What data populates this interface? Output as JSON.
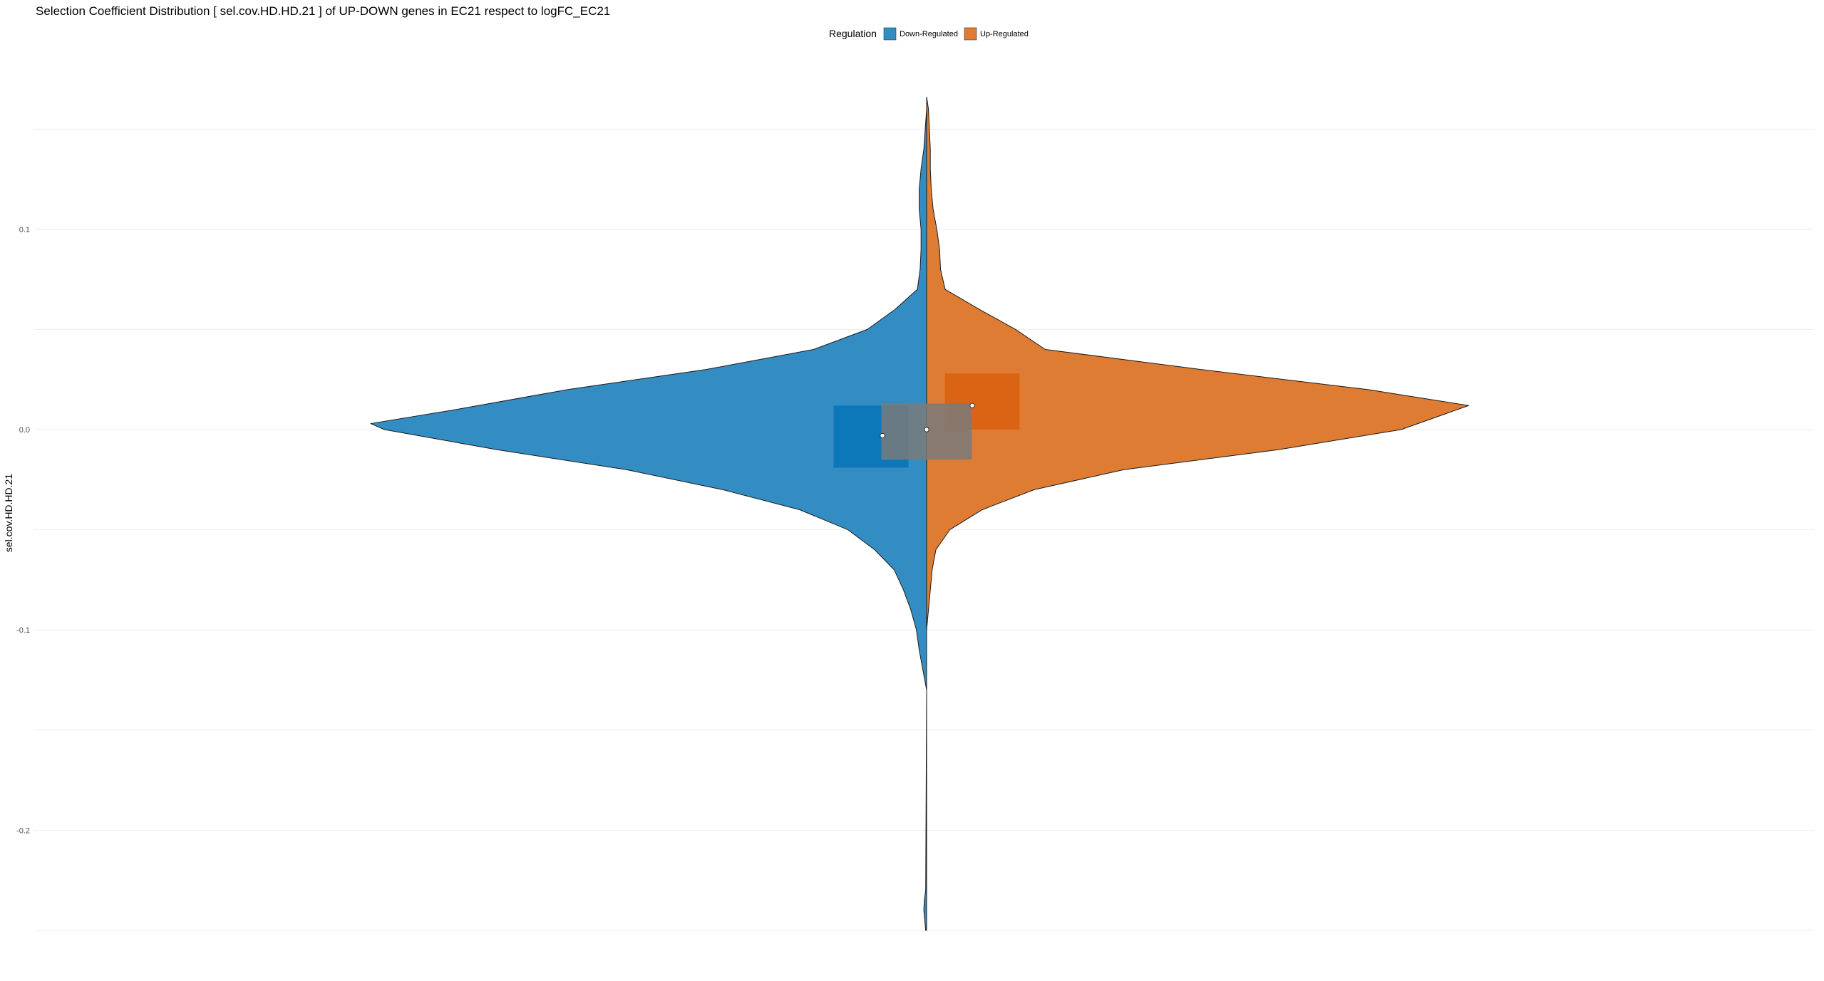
{
  "chart_data": {
    "type": "violin",
    "title": "Selection Coefficient Distribution [ sel.cov.HD.HD.21 ] of UP-DOWN genes in  EC21  respect to  logFC_EC21",
    "ylabel": "sel.cov.HD.HD.21",
    "xlabel": "",
    "ylim": [
      -0.25,
      0.16
    ],
    "grid": true,
    "yticks": [
      {
        "value": 0.1,
        "label": "0.1"
      },
      {
        "value": 0.0,
        "label": "0.0"
      },
      {
        "value": -0.1,
        "label": "-0.1"
      },
      {
        "value": -0.2,
        "label": "-0.2"
      }
    ],
    "legend": {
      "title": "Regulation",
      "position": "top",
      "entries": [
        {
          "label": "Down-Regulated",
          "color": "#348dc2"
        },
        {
          "label": "Up-Regulated",
          "color": "#df7c33"
        }
      ]
    },
    "series": [
      {
        "name": "Down-Regulated",
        "side": "left",
        "color": "#348dc2",
        "box_color": "#0b77b9",
        "box": {
          "q1": -0.019,
          "q3": 0.012,
          "median": -0.003
        },
        "density": [
          [
            -0.25,
            0.01
          ],
          [
            -0.245,
            0.02
          ],
          [
            -0.24,
            0.03
          ],
          [
            -0.235,
            0.025
          ],
          [
            -0.23,
            0.01
          ],
          [
            -0.13,
            0.0
          ],
          [
            -0.125,
            0.02
          ],
          [
            -0.12,
            0.04
          ],
          [
            -0.11,
            0.08
          ],
          [
            -0.1,
            0.11
          ],
          [
            -0.09,
            0.17
          ],
          [
            -0.08,
            0.25
          ],
          [
            -0.07,
            0.35
          ],
          [
            -0.06,
            0.56
          ],
          [
            -0.05,
            0.85
          ],
          [
            -0.04,
            1.37
          ],
          [
            -0.03,
            2.2
          ],
          [
            -0.02,
            3.24
          ],
          [
            -0.01,
            4.64
          ],
          [
            0.0,
            5.85
          ],
          [
            0.003,
            6.0
          ],
          [
            0.01,
            5.08
          ],
          [
            0.02,
            3.87
          ],
          [
            0.03,
            2.38
          ],
          [
            0.04,
            1.22
          ],
          [
            0.05,
            0.64
          ],
          [
            0.06,
            0.34
          ],
          [
            0.07,
            0.1
          ],
          [
            0.08,
            0.07
          ],
          [
            0.09,
            0.06
          ],
          [
            0.1,
            0.06
          ],
          [
            0.11,
            0.08
          ],
          [
            0.12,
            0.08
          ],
          [
            0.13,
            0.06
          ],
          [
            0.14,
            0.03
          ],
          [
            0.15,
            0.015
          ],
          [
            0.16,
            0.0
          ]
        ]
      },
      {
        "name": "Up-Regulated",
        "side": "right",
        "color": "#df7c33",
        "box_color": "#da6313",
        "box": {
          "q1": 0.0,
          "q3": 0.028,
          "median": 0.012
        },
        "density": [
          [
            -0.1,
            0.0
          ],
          [
            -0.09,
            0.02
          ],
          [
            -0.08,
            0.04
          ],
          [
            -0.07,
            0.06
          ],
          [
            -0.06,
            0.1
          ],
          [
            -0.05,
            0.25
          ],
          [
            -0.04,
            0.6
          ],
          [
            -0.03,
            1.16
          ],
          [
            -0.02,
            2.13
          ],
          [
            -0.01,
            3.8
          ],
          [
            0.0,
            5.12
          ],
          [
            0.012,
            5.85
          ],
          [
            0.02,
            4.76
          ],
          [
            0.03,
            2.96
          ],
          [
            0.04,
            1.28
          ],
          [
            0.05,
            0.96
          ],
          [
            0.06,
            0.57
          ],
          [
            0.07,
            0.2
          ],
          [
            0.08,
            0.15
          ],
          [
            0.09,
            0.14
          ],
          [
            0.1,
            0.11
          ],
          [
            0.11,
            0.07
          ],
          [
            0.12,
            0.05
          ],
          [
            0.13,
            0.04
          ],
          [
            0.14,
            0.04
          ],
          [
            0.15,
            0.03
          ],
          [
            0.16,
            0.02
          ],
          [
            0.166,
            0.0
          ]
        ]
      }
    ],
    "overall_box": {
      "q1": -0.015,
      "q3": 0.013,
      "median": 0.0,
      "color": "#7a7a7a"
    }
  }
}
